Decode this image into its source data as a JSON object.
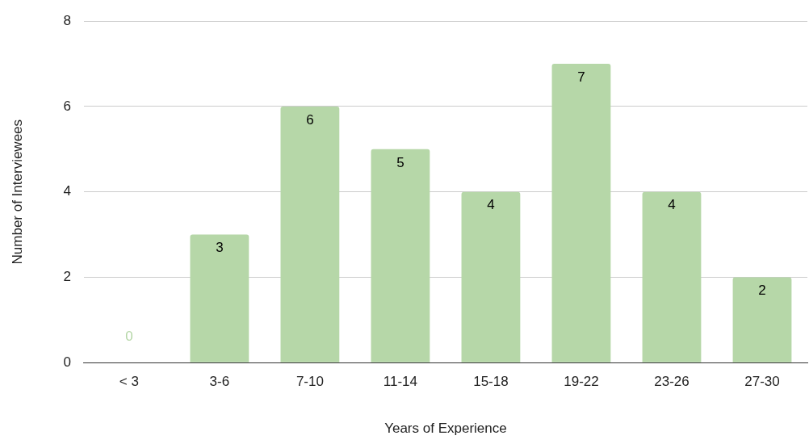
{
  "chart_data": {
    "type": "bar",
    "xlabel": "Years of Experience",
    "ylabel": "Number of Interviewees",
    "categories": [
      "< 3",
      "3-6",
      "7-10",
      "11-14",
      "15-18",
      "19-22",
      "23-26",
      "27-30"
    ],
    "values": [
      0,
      3,
      6,
      5,
      4,
      7,
      4,
      2
    ],
    "color": "#b6d7a8",
    "ylim": [
      0,
      8
    ],
    "yticks": [
      0,
      2,
      4,
      6,
      8
    ],
    "grid": "y",
    "data_labels": true,
    "legend": false
  }
}
